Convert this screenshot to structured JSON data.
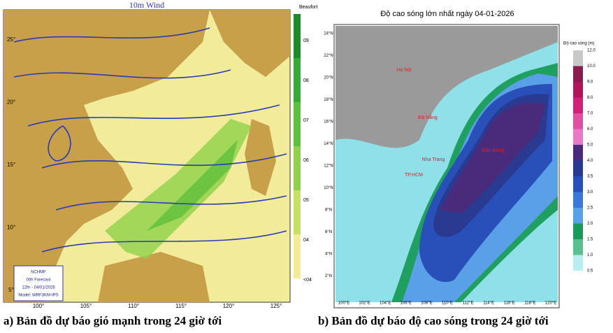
{
  "left_map": {
    "title": "10m Wind",
    "colorbar_label": "Beaufort",
    "colorbar_ticks": [
      "09",
      "08",
      "07",
      "06",
      "05",
      "04",
      "<04"
    ],
    "lat_labels": [
      "25°",
      "20°",
      "15°",
      "10°",
      "5°"
    ],
    "lon_labels": [
      "100°",
      "105°",
      "110°",
      "115°",
      "120°",
      "125°"
    ],
    "info_box": [
      "NCHMF",
      "00h Forecast",
      "12hr - 04/01/2026",
      "Model: WRF3KM-IPS"
    ],
    "caption": "a) Bản đồ dự báo gió mạnh trong 24 giờ tới"
  },
  "right_map": {
    "title": "Độ cao sóng lớn nhất ngày 04-01-2026",
    "colorbar_label": "Độ cao sóng (m)",
    "colorbar_ticks": [
      "12.0",
      "10.0",
      "9.0",
      "8.0",
      "7.0",
      "6.0",
      "5.0",
      "4.0",
      "3.5",
      "3.0",
      "2.5",
      "2.0",
      "1.5",
      "1.0",
      "0.5"
    ],
    "lat_labels": [
      "24°N",
      "22°N",
      "20°N",
      "18°N",
      "16°N",
      "14°N",
      "12°N",
      "10°N",
      "8°N",
      "6°N",
      "4°N",
      "2°N"
    ],
    "lon_labels": [
      "100°E",
      "102°E",
      "104°E",
      "106°E",
      "108°E",
      "110°E",
      "112°E",
      "114°E",
      "116°E",
      "118°E",
      "120°E"
    ],
    "places": [
      "Hà Nội",
      "Đà Nẵng",
      "Nha Trang",
      "TP.HCM",
      "Biển Đông"
    ],
    "caption": "b) Bản đồ dự báo độ cao sóng trong 24 giờ tới"
  }
}
